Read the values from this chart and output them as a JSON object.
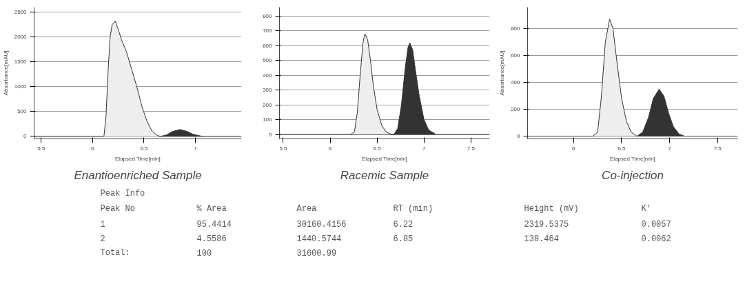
{
  "chart_data": [
    {
      "type": "area",
      "title": "Enantioenriched Sample",
      "xlabel": "Elapsed Time[min]",
      "ylabel": "Absorbance[mAU]",
      "xlim": [
        5.43,
        7.45
      ],
      "ylim": [
        -50,
        2600
      ],
      "xticks": [
        5.5,
        6,
        6.5,
        7
      ],
      "yticks": [
        0,
        500,
        1000,
        1500,
        2000,
        2500
      ],
      "grid": "y",
      "series": [
        {
          "type": "line",
          "color": "#444444",
          "x": [
            5.43,
            6.11,
            6.66,
            7.07,
            7.45
          ],
          "values": [
            0,
            0,
            0,
            0,
            0
          ]
        },
        {
          "color": "#eeeeee",
          "x": [
            6.11,
            6.13,
            6.15,
            6.17,
            6.19,
            6.22,
            6.25,
            6.28,
            6.33,
            6.38,
            6.43,
            6.48,
            6.53,
            6.58,
            6.63,
            6.66
          ],
          "values": [
            0,
            400,
            1300,
            2000,
            2250,
            2319,
            2150,
            1950,
            1700,
            1350,
            1000,
            600,
            300,
            100,
            20,
            0
          ]
        },
        {
          "color": "#333333",
          "x": [
            6.66,
            6.72,
            6.78,
            6.85,
            6.92,
            6.98,
            7.07
          ],
          "values": [
            0,
            30,
            100,
            138,
            100,
            40,
            0
          ]
        }
      ]
    },
    {
      "type": "area",
      "title": "Racemic Sample",
      "xlabel": "Elapsed Time[min]",
      "xlim": [
        5.46,
        7.7
      ],
      "ylim": [
        -30,
        860
      ],
      "xticks": [
        5.5,
        6,
        6.5,
        7,
        7.5
      ],
      "yticks": [
        0,
        100,
        200,
        300,
        400,
        500,
        600,
        700,
        800
      ],
      "grid": "y",
      "series": [
        {
          "type": "line",
          "color": "#444444",
          "x": [
            5.46,
            6.22,
            6.68,
            7.12,
            7.7
          ],
          "values": [
            0,
            0,
            0,
            0,
            0
          ]
        },
        {
          "color": "#eeeeee",
          "x": [
            6.22,
            6.26,
            6.29,
            6.32,
            6.35,
            6.37,
            6.4,
            6.43,
            6.46,
            6.5,
            6.55,
            6.6,
            6.65,
            6.68
          ],
          "values": [
            0,
            20,
            150,
            400,
            620,
            681,
            640,
            500,
            330,
            170,
            60,
            15,
            2,
            0
          ]
        },
        {
          "color": "#333333",
          "x": [
            6.68,
            6.72,
            6.76,
            6.8,
            6.83,
            6.85,
            6.88,
            6.91,
            6.95,
            7.0,
            7.05,
            7.12
          ],
          "values": [
            0,
            40,
            200,
            450,
            590,
            619,
            570,
            430,
            260,
            100,
            30,
            3
          ]
        }
      ]
    },
    {
      "type": "area",
      "title": "Co-injection",
      "xlabel": "Elapsed Time[min]",
      "ylabel": "Absorbance[mAU]",
      "xlim": [
        5.52,
        7.71
      ],
      "ylim": [
        -20,
        960
      ],
      "xticks": [
        6,
        6.5,
        7,
        7.5
      ],
      "yticks": [
        0,
        200,
        400,
        600,
        800
      ],
      "grid": "y",
      "series": [
        {
          "type": "line",
          "color": "#444444",
          "x": [
            5.52,
            6.2,
            6.66,
            7.15,
            7.71
          ],
          "values": [
            0,
            0,
            0,
            0,
            0
          ]
        },
        {
          "color": "#eeeeee",
          "x": [
            6.2,
            6.25,
            6.29,
            6.33,
            6.375,
            6.41,
            6.45,
            6.5,
            6.55,
            6.6,
            6.65,
            6.66
          ],
          "values": [
            0,
            30,
            300,
            700,
            872,
            800,
            560,
            280,
            110,
            30,
            5,
            0
          ]
        },
        {
          "color": "#333333",
          "x": [
            6.66,
            6.72,
            6.78,
            6.83,
            6.89,
            6.94,
            6.99,
            7.04,
            7.1,
            7.15
          ],
          "values": [
            0,
            30,
            140,
            280,
            350,
            300,
            170,
            70,
            15,
            2
          ]
        }
      ]
    },
    {
      "type": "other",
      "title": "Peak Info",
      "categories": [
        "Peak No",
        "% Area",
        "Area",
        "RT (min)",
        "Height (mV)",
        "K'"
      ],
      "annotations": [
        "1",
        "95.4414",
        "30160.4156",
        "6.22",
        "2319.5375",
        "0.0057",
        "2",
        "4.5586",
        "1440.5744",
        "6.85",
        "138.464",
        "0.0062",
        "Total:",
        "100",
        "31600.99"
      ]
    }
  ]
}
